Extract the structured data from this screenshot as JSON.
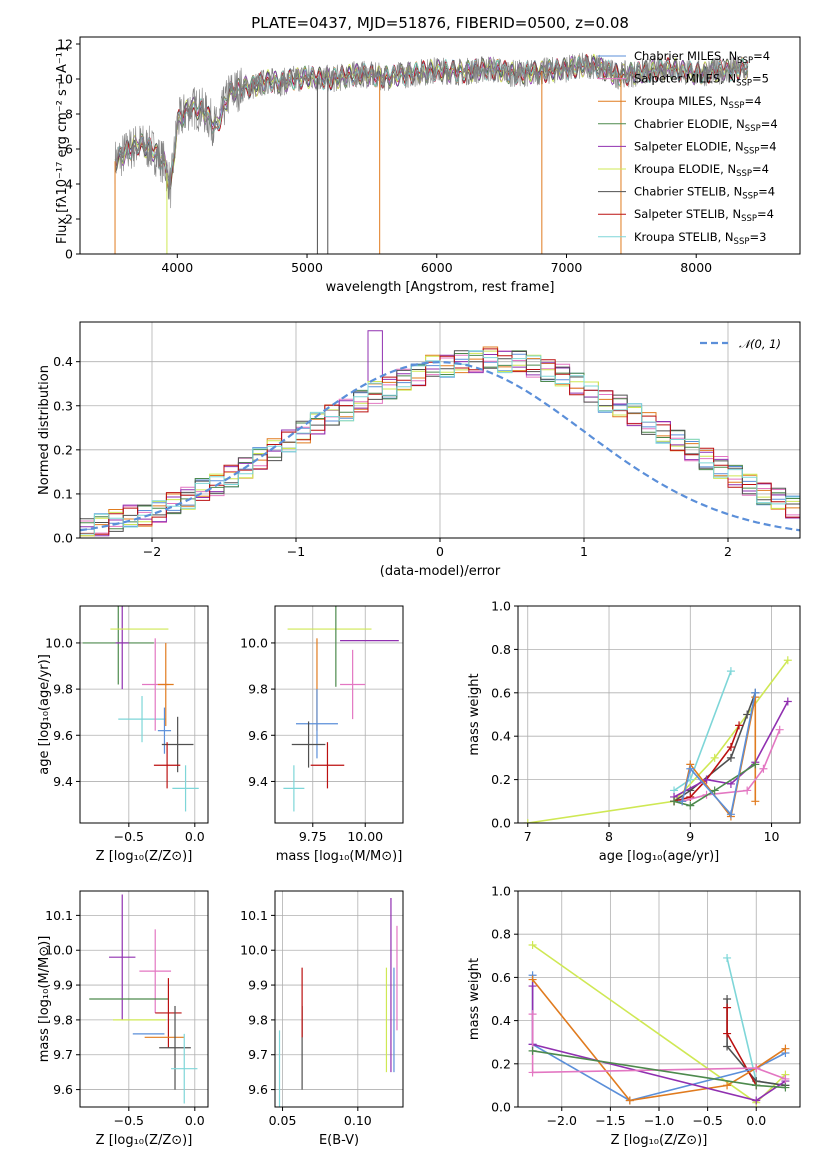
{
  "colors": {
    "c1": "#5b8fd9",
    "c2": "#e377c2",
    "c3": "#e07b1f",
    "c4": "#4d8a4d",
    "c5": "#9030b0",
    "c6": "#cfe854",
    "c7": "#505050",
    "c8": "#bb1010",
    "c9": "#7ed6d8"
  },
  "chart_data": [
    {
      "type": "line",
      "title": "PLATE=0437, MJD=51876, FIBERID=0500, z=0.08",
      "xlabel": "wavelength [Angstrom, rest frame]",
      "ylabel": "Flux [fλ10⁻¹⁷ erg cm⁻² s⁻¹ A⁻¹]",
      "xlim": [
        3250,
        8800
      ],
      "ylim": [
        0,
        12.4
      ],
      "xticks": [
        4000,
        5000,
        6000,
        7000,
        8000
      ],
      "yticks": [
        0,
        2,
        4,
        6,
        8,
        10,
        12
      ],
      "legend": "right",
      "series": [
        {
          "name": "Chabrier MILES, N_SSP=4",
          "color": "c1"
        },
        {
          "name": "Salpeter MILES, N_SSP=5",
          "color": "c2"
        },
        {
          "name": "Kroupa MILES, N_SSP=4",
          "color": "c3"
        },
        {
          "name": "Chabrier ELODIE, N_SSP=4",
          "color": "c4"
        },
        {
          "name": "Salpeter ELODIE, N_SSP=4",
          "color": "c5"
        },
        {
          "name": "Kroupa ELODIE, N_SSP=4",
          "color": "c6"
        },
        {
          "name": "Chabrier STELIB, N_SSP=4",
          "color": "c7"
        },
        {
          "name": "Salpeter STELIB, N_SSP=4",
          "color": "c8"
        },
        {
          "name": "Kroupa STELIB, N_SSP=3",
          "color": "c9"
        }
      ],
      "data_color": "#808080",
      "spectrum_x": [
        3520,
        3600,
        3700,
        3800,
        3900,
        3950,
        4000,
        4100,
        4200,
        4300,
        4400,
        4500,
        4600,
        4700,
        4800,
        4900,
        5000,
        5200,
        5400,
        5600,
        5800,
        6000,
        6200,
        6400,
        6600,
        6800,
        7000,
        7200,
        7400,
        7600,
        7800,
        8000,
        8200,
        8400
      ],
      "spectrum_y": [
        5.3,
        5.8,
        6.3,
        6.0,
        5.2,
        3.8,
        7.5,
        8.4,
        8.2,
        7.2,
        9.2,
        9.5,
        9.6,
        9.9,
        9.8,
        10.0,
        10.1,
        10.0,
        10.3,
        10.1,
        10.3,
        10.5,
        10.4,
        10.6,
        10.3,
        10.4,
        10.6,
        10.8,
        10.2,
        10.4,
        10.6,
        10.3,
        10.5,
        10.6
      ]
    },
    {
      "type": "line",
      "title": "",
      "xlabel": "(data-model)/error",
      "ylabel": "Normed distribution",
      "xlim": [
        -2.5,
        2.5
      ],
      "ylim": [
        0,
        0.49
      ],
      "xticks": [
        -2,
        -1,
        0,
        1,
        2
      ],
      "yticks": [
        0.0,
        0.1,
        0.2,
        0.3,
        0.4
      ],
      "legend_label": "𝒩(0, 1)",
      "legend": "top-right",
      "reference_curve": "gaussian mean 0 sigma 1",
      "bin_edges_step": 0.1,
      "histogram": [
        0.02,
        0.03,
        0.04,
        0.05,
        0.05,
        0.06,
        0.08,
        0.09,
        0.11,
        0.12,
        0.14,
        0.16,
        0.18,
        0.2,
        0.22,
        0.24,
        0.26,
        0.28,
        0.29,
        0.31,
        0.33,
        0.34,
        0.36,
        0.37,
        0.39,
        0.39,
        0.4,
        0.4,
        0.41,
        0.4,
        0.4,
        0.39,
        0.38,
        0.37,
        0.35,
        0.33,
        0.31,
        0.3,
        0.28,
        0.26,
        0.24,
        0.22,
        0.2,
        0.18,
        0.16,
        0.14,
        0.12,
        0.1,
        0.09,
        0.07
      ]
    },
    {
      "type": "scatter",
      "title": "",
      "xlabel": "Z [log₁₀(Z/Z⊙)]",
      "ylabel": "age  [log₁₀(age/yr)]",
      "xlim": [
        -0.87,
        0.1
      ],
      "ylim": [
        9.22,
        10.16
      ],
      "xticks": [
        -0.5,
        0.0
      ],
      "yticks": [
        9.4,
        9.6,
        9.8,
        10.0
      ],
      "points": [
        {
          "c": "c4",
          "x": -0.58,
          "y": 10.0,
          "xe": 0.27,
          "ye": 0.18
        },
        {
          "c": "c5",
          "x": -0.55,
          "y": 10.0,
          "xe": 0.05,
          "ye": 0.2
        },
        {
          "c": "c6",
          "x": -0.42,
          "y": 10.06,
          "xe": 0.22,
          "ye": 0.0
        },
        {
          "c": "c9",
          "x": -0.4,
          "y": 9.67,
          "xe": 0.18,
          "ye": 0.1
        },
        {
          "c": "c2",
          "x": -0.3,
          "y": 9.82,
          "xe": 0.1,
          "ye": 0.2
        },
        {
          "c": "c3",
          "x": -0.22,
          "y": 9.82,
          "xe": 0.06,
          "ye": 0.18
        },
        {
          "c": "c1",
          "x": -0.23,
          "y": 9.62,
          "xe": 0.05,
          "ye": 0.1
        },
        {
          "c": "c7",
          "x": -0.13,
          "y": 9.56,
          "xe": 0.12,
          "ye": 0.12
        },
        {
          "c": "c8",
          "x": -0.21,
          "y": 9.47,
          "xe": 0.1,
          "ye": 0.1
        },
        {
          "c": "c9",
          "x": -0.07,
          "y": 9.37,
          "xe": 0.1,
          "ye": 0.1
        }
      ]
    },
    {
      "type": "scatter",
      "title": "",
      "xlabel": "mass [log₁₀(M/M⊙)]",
      "ylabel": "",
      "xlim": [
        9.57,
        10.18
      ],
      "ylim": [
        9.22,
        10.16
      ],
      "xticks": [
        9.75,
        10.0
      ],
      "yticks": [
        9.4,
        9.6,
        9.8,
        10.0
      ],
      "points": [
        {
          "c": "c6",
          "x": 9.83,
          "y": 10.06,
          "xe": 0.2,
          "ye": 0.0
        },
        {
          "c": "c5",
          "x": 10.02,
          "y": 10.01,
          "xe": 0.14,
          "ye": 0.0
        },
        {
          "c": "c4",
          "x": 9.86,
          "y": 10.01,
          "xe": 0.0,
          "ye": 0.2
        },
        {
          "c": "c3",
          "x": 9.77,
          "y": 9.82,
          "xe": 0.0,
          "ye": 0.2
        },
        {
          "c": "c2",
          "x": 9.94,
          "y": 9.82,
          "xe": 0.06,
          "ye": 0.15
        },
        {
          "c": "c1",
          "x": 9.77,
          "y": 9.65,
          "xe": 0.1,
          "ye": 0.15
        },
        {
          "c": "c7",
          "x": 9.73,
          "y": 9.56,
          "xe": 0.08,
          "ye": 0.1
        },
        {
          "c": "c8",
          "x": 9.82,
          "y": 9.47,
          "xe": 0.08,
          "ye": 0.1
        },
        {
          "c": "c9",
          "x": 9.66,
          "y": 9.37,
          "xe": 0.05,
          "ye": 0.1
        }
      ]
    },
    {
      "type": "line",
      "title": "",
      "xlabel": "age  [log₁₀(age/yr)]",
      "ylabel": "mass weight",
      "xlim": [
        6.88,
        10.35
      ],
      "ylim": [
        0,
        1.0
      ],
      "xticks": [
        7,
        8,
        9,
        10
      ],
      "yticks": [
        0.0,
        0.2,
        0.4,
        0.6,
        0.8,
        1.0
      ],
      "series": [
        {
          "c": "c6",
          "x": [
            7.0,
            8.8,
            9.3,
            10.2
          ],
          "y": [
            0.0,
            0.1,
            0.3,
            0.75
          ]
        },
        {
          "c": "c9",
          "x": [
            8.8,
            9.0,
            9.5
          ],
          "y": [
            0.15,
            0.2,
            0.7
          ]
        },
        {
          "c": "c7",
          "x": [
            8.8,
            9.0,
            9.5,
            9.7,
            9.8
          ],
          "y": [
            0.1,
            0.15,
            0.3,
            0.5,
            0.6
          ]
        },
        {
          "c": "c8",
          "x": [
            8.8,
            9.0,
            9.2,
            9.5,
            9.6
          ],
          "y": [
            0.1,
            0.12,
            0.2,
            0.35,
            0.45
          ]
        },
        {
          "c": "c5",
          "x": [
            8.8,
            9.2,
            9.5,
            9.8,
            10.2
          ],
          "y": [
            0.12,
            0.2,
            0.18,
            0.28,
            0.56
          ]
        },
        {
          "c": "c3",
          "x": [
            8.9,
            9.0,
            9.5,
            9.8,
            9.8
          ],
          "y": [
            0.1,
            0.27,
            0.03,
            0.58,
            0.1
          ]
        },
        {
          "c": "c2",
          "x": [
            8.9,
            9.2,
            9.7,
            9.9,
            10.1
          ],
          "y": [
            0.1,
            0.13,
            0.15,
            0.25,
            0.43
          ]
        },
        {
          "c": "c4",
          "x": [
            8.8,
            9.0,
            9.3,
            9.8
          ],
          "y": [
            0.1,
            0.08,
            0.15,
            0.27
          ]
        },
        {
          "c": "c1",
          "x": [
            8.9,
            9.0,
            9.5,
            9.8
          ],
          "y": [
            0.1,
            0.25,
            0.04,
            0.6
          ]
        }
      ]
    },
    {
      "type": "scatter",
      "title": "",
      "xlabel": "Z [log₁₀(Z/Z⊙)]",
      "ylabel": "mass [log₁₀(M/M⊙)]",
      "xlim": [
        -0.87,
        0.1
      ],
      "ylim": [
        9.55,
        10.17
      ],
      "xticks": [
        -0.5,
        0.0
      ],
      "yticks": [
        9.6,
        9.7,
        9.8,
        9.9,
        10.0,
        10.1
      ],
      "points": [
        {
          "c": "c5",
          "x": -0.55,
          "y": 9.98,
          "xe": 0.1,
          "ye": 0.18
        },
        {
          "c": "c2",
          "x": -0.3,
          "y": 9.94,
          "xe": 0.12,
          "ye": 0.12
        },
        {
          "c": "c4",
          "x": -0.5,
          "y": 9.86,
          "xe": 0.3,
          "ye": 0.0
        },
        {
          "c": "c8",
          "x": -0.2,
          "y": 9.82,
          "xe": 0.1,
          "ye": 0.1
        },
        {
          "c": "c6",
          "x": -0.42,
          "y": 9.8,
          "xe": 0.2,
          "ye": 0.0
        },
        {
          "c": "c1",
          "x": -0.35,
          "y": 9.76,
          "xe": 0.12,
          "ye": 0.0
        },
        {
          "c": "c3",
          "x": -0.23,
          "y": 9.75,
          "xe": 0.15,
          "ye": 0.0
        },
        {
          "c": "c7",
          "x": -0.15,
          "y": 9.72,
          "xe": 0.12,
          "ye": 0.12
        },
        {
          "c": "c9",
          "x": -0.08,
          "y": 9.66,
          "xe": 0.1,
          "ye": 0.1
        }
      ]
    },
    {
      "type": "scatter",
      "title": "",
      "xlabel": "E(B-V)",
      "ylabel": "",
      "xlim": [
        0.045,
        0.13
      ],
      "ylim": [
        9.55,
        10.17
      ],
      "xticks": [
        0.05,
        0.1
      ],
      "yticks": [
        9.6,
        9.7,
        9.8,
        9.9,
        10.0,
        10.1
      ],
      "points": [
        {
          "c": "c9",
          "x": 0.048,
          "y": 9.65,
          "xe": 0.0,
          "ye": 0.12
        },
        {
          "c": "c7",
          "x": 0.063,
          "y": 9.72,
          "xe": 0.0,
          "ye": 0.12
        },
        {
          "c": "c8",
          "x": 0.063,
          "y": 9.85,
          "xe": 0.0,
          "ye": 0.1
        },
        {
          "c": "c6",
          "x": 0.119,
          "y": 9.8,
          "xe": 0.0,
          "ye": 0.15
        },
        {
          "c": "c5",
          "x": 0.122,
          "y": 9.9,
          "xe": 0.0,
          "ye": 0.25
        },
        {
          "c": "c1",
          "x": 0.124,
          "y": 9.8,
          "xe": 0.0,
          "ye": 0.15
        },
        {
          "c": "c2",
          "x": 0.126,
          "y": 9.92,
          "xe": 0.0,
          "ye": 0.15
        }
      ]
    },
    {
      "type": "line",
      "title": "",
      "xlabel": "Z [log₁₀(Z/Z⊙)]",
      "ylabel": "mass weight",
      "xlim": [
        -2.45,
        0.45
      ],
      "ylim": [
        0,
        1.0
      ],
      "xticks": [
        -2.0,
        -1.5,
        -1.0,
        -0.5,
        0.0
      ],
      "yticks": [
        0.0,
        0.2,
        0.4,
        0.6,
        0.8,
        1.0
      ],
      "series": [
        {
          "c": "c6",
          "x": [
            -2.3,
            0.0,
            0.3
          ],
          "y": [
            0.75,
            0.02,
            0.15
          ]
        },
        {
          "c": "c9",
          "x": [
            -0.3,
            0.0,
            0.3
          ],
          "y": [
            0.69,
            0.12,
            0.1
          ]
        },
        {
          "c": "c7",
          "x": [
            -0.3,
            -0.3,
            0.0,
            0.3
          ],
          "y": [
            0.5,
            0.28,
            0.12,
            0.1
          ]
        },
        {
          "c": "c8",
          "x": [
            -0.3,
            -0.3,
            0.0
          ],
          "y": [
            0.46,
            0.34,
            0.1
          ]
        },
        {
          "c": "c1",
          "x": [
            -2.3,
            -2.3,
            -1.3,
            0.0,
            0.3
          ],
          "y": [
            0.61,
            0.29,
            0.03,
            0.18,
            0.25
          ]
        },
        {
          "c": "c3",
          "x": [
            -2.3,
            -1.3,
            -0.3,
            0.0,
            0.3
          ],
          "y": [
            0.59,
            0.03,
            0.1,
            0.18,
            0.27
          ]
        },
        {
          "c": "c5",
          "x": [
            -2.3,
            -2.3,
            0.0,
            0.3
          ],
          "y": [
            0.56,
            0.29,
            0.03,
            0.12
          ]
        },
        {
          "c": "c2",
          "x": [
            -2.3,
            -2.3,
            0.0,
            0.3
          ],
          "y": [
            0.43,
            0.16,
            0.18,
            0.13
          ]
        },
        {
          "c": "c4",
          "x": [
            -2.3,
            0.0,
            0.3
          ],
          "y": [
            0.26,
            0.1,
            0.09
          ]
        }
      ]
    }
  ]
}
